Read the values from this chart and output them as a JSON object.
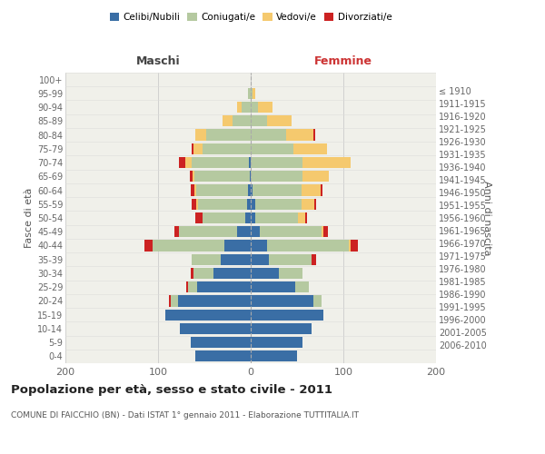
{
  "age_groups": [
    "0-4",
    "5-9",
    "10-14",
    "15-19",
    "20-24",
    "25-29",
    "30-34",
    "35-39",
    "40-44",
    "45-49",
    "50-54",
    "55-59",
    "60-64",
    "65-69",
    "70-74",
    "75-79",
    "80-84",
    "85-89",
    "90-94",
    "95-99",
    "100+"
  ],
  "birth_years": [
    "2006-2010",
    "2001-2005",
    "1996-2000",
    "1991-1995",
    "1986-1990",
    "1981-1985",
    "1976-1980",
    "1971-1975",
    "1966-1970",
    "1961-1965",
    "1956-1960",
    "1951-1955",
    "1946-1950",
    "1941-1945",
    "1936-1940",
    "1931-1935",
    "1926-1930",
    "1921-1925",
    "1916-1920",
    "1911-1915",
    "≤ 1910"
  ],
  "maschi": {
    "celibi": [
      60,
      65,
      76,
      92,
      78,
      58,
      40,
      32,
      28,
      15,
      6,
      4,
      3,
      1,
      2,
      0,
      0,
      0,
      0,
      0,
      0
    ],
    "coniugati": [
      0,
      0,
      0,
      0,
      8,
      10,
      22,
      32,
      78,
      62,
      46,
      53,
      56,
      60,
      62,
      52,
      48,
      20,
      10,
      3,
      0
    ],
    "vedovi": [
      0,
      0,
      0,
      0,
      0,
      0,
      0,
      0,
      0,
      0,
      0,
      2,
      2,
      2,
      7,
      10,
      12,
      10,
      5,
      0,
      0
    ],
    "divorziati": [
      0,
      0,
      0,
      0,
      2,
      2,
      3,
      0,
      9,
      5,
      8,
      5,
      4,
      3,
      6,
      2,
      0,
      0,
      0,
      0,
      0
    ]
  },
  "femmine": {
    "nubili": [
      50,
      56,
      66,
      78,
      68,
      48,
      30,
      20,
      18,
      10,
      5,
      5,
      2,
      0,
      0,
      0,
      0,
      0,
      0,
      0,
      0
    ],
    "coniugate": [
      0,
      0,
      0,
      0,
      8,
      15,
      26,
      46,
      88,
      66,
      46,
      50,
      53,
      56,
      56,
      46,
      38,
      18,
      8,
      2,
      0
    ],
    "vedove": [
      0,
      0,
      0,
      0,
      0,
      0,
      0,
      0,
      2,
      2,
      8,
      14,
      20,
      28,
      52,
      36,
      30,
      26,
      16,
      3,
      0
    ],
    "divorziate": [
      0,
      0,
      0,
      0,
      0,
      0,
      0,
      5,
      8,
      5,
      2,
      2,
      2,
      0,
      0,
      0,
      2,
      0,
      0,
      0,
      0
    ]
  },
  "colors": {
    "celibi": "#3a6ea5",
    "coniugati": "#b5c9a0",
    "vedovi": "#f5c96e",
    "divorziati": "#cc2222"
  },
  "title": "Popolazione per età, sesso e stato civile - 2011",
  "subtitle": "COMUNE DI FAICCHIO (BN) - Dati ISTAT 1° gennaio 2011 - Elaborazione TUTTITALIA.IT",
  "maschi_label": "Maschi",
  "femmine_label": "Femmine",
  "ylabel_left": "Fasce di età",
  "ylabel_right": "Anni di nascita",
  "xlim": 200,
  "legend_labels": [
    "Celibi/Nubili",
    "Coniugati/e",
    "Vedovi/e",
    "Divorziati/e"
  ],
  "background_color": "#ffffff",
  "plot_bg": "#f0f0ea",
  "grid_color": "#cccccc"
}
